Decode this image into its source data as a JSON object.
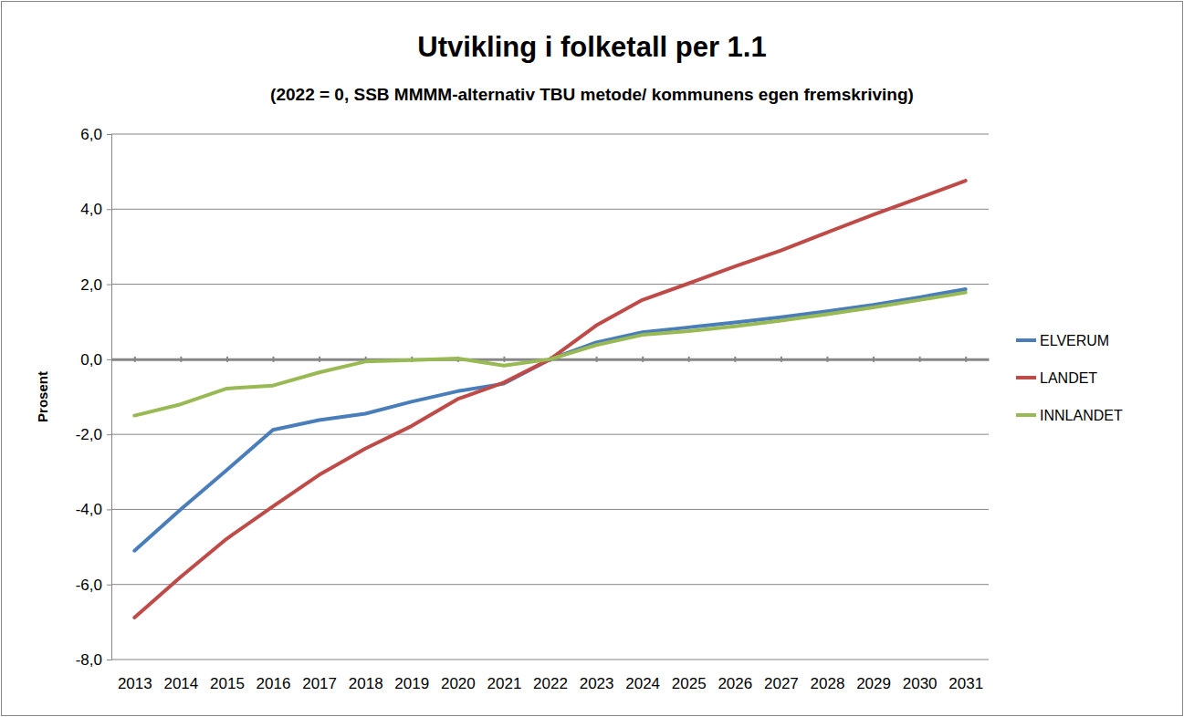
{
  "chart_data": {
    "type": "line",
    "title": "Utvikling i folketall per 1.1",
    "subtitle": "(2022 = 0, SSB MMMM-alternativ TBU metode/ kommunens egen fremskriving)",
    "y_label": "Prosent",
    "categories": [
      "2013",
      "2014",
      "2015",
      "2016",
      "2017",
      "2018",
      "2019",
      "2020",
      "2021",
      "2022",
      "2023",
      "2024",
      "2025",
      "2026",
      "2027",
      "2028",
      "2029",
      "2030",
      "2031"
    ],
    "series": [
      {
        "name": "ELVERUM",
        "color": "#4a7ebb",
        "line_style": "solid",
        "marker": "none",
        "values": [
          -5.1,
          -4.0,
          -2.95,
          -1.88,
          -1.62,
          -1.45,
          -1.13,
          -0.85,
          -0.65,
          0,
          0.45,
          0.72,
          0.85,
          0.98,
          1.12,
          1.28,
          1.45,
          1.65,
          1.87
        ]
      },
      {
        "name": "LANDET",
        "color": "#be4b48",
        "line_style": "solid",
        "marker": "none",
        "values": [
          -6.88,
          -5.8,
          -4.78,
          -3.92,
          -3.08,
          -2.38,
          -1.78,
          -1.06,
          -0.62,
          0,
          0.9,
          1.58,
          2.02,
          2.47,
          2.9,
          3.38,
          3.85,
          4.3,
          4.76
        ]
      },
      {
        "name": "INNLANDET",
        "color": "#98b954",
        "line_style": "solid",
        "marker": "none",
        "values": [
          -1.5,
          -1.2,
          -0.78,
          -0.7,
          -0.35,
          -0.06,
          -0.02,
          0.02,
          -0.17,
          0,
          0.38,
          0.65,
          0.75,
          0.88,
          1.03,
          1.2,
          1.38,
          1.58,
          1.78
        ]
      }
    ],
    "ylim": [
      -8,
      6
    ],
    "yticks": [
      {
        "value": -8,
        "label": "-8,0"
      },
      {
        "value": -6,
        "label": "-6,0"
      },
      {
        "value": -4,
        "label": "-4,0"
      },
      {
        "value": -2,
        "label": "-2,0"
      },
      {
        "value": 0,
        "label": "0,0"
      },
      {
        "value": 2,
        "label": "2,0"
      },
      {
        "value": 4,
        "label": "4,0"
      },
      {
        "value": 6,
        "label": "6,0"
      }
    ],
    "grid": true,
    "legend": "right"
  }
}
